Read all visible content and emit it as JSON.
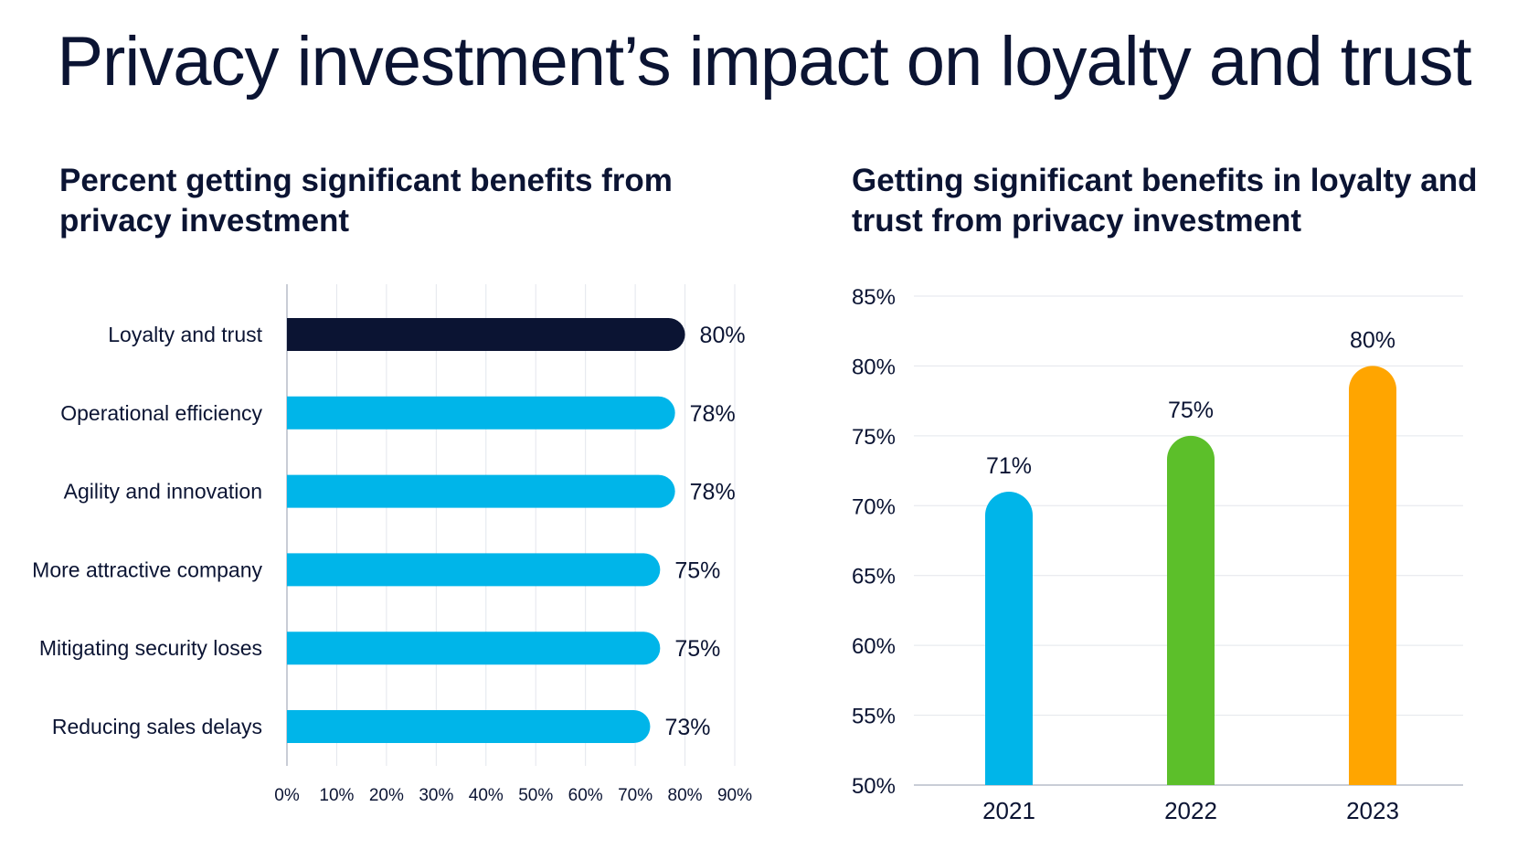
{
  "page": {
    "title": "Privacy investment’s impact on loyalty and trust"
  },
  "colors": {
    "text": "#0b1433",
    "highlight_bar": "#0b1433",
    "bar": "#00b5e9",
    "grid": "#e3e6ec",
    "axis": "#c9cdd6",
    "year_2021": "#00b5e9",
    "year_2022": "#5cbf2a",
    "year_2023": "#ffa500"
  },
  "chart_data": [
    {
      "type": "bar",
      "orientation": "horizontal",
      "title": "Percent getting significant benefits from privacy investment",
      "categories": [
        "Loyalty and trust",
        "Operational efficiency",
        "Agility and innovation",
        "More attractive company",
        "Mitigating security loses",
        "Reducing sales delays"
      ],
      "values": [
        80,
        78,
        78,
        75,
        75,
        73
      ],
      "value_labels": [
        "80%",
        "78%",
        "78%",
        "75%",
        "75%",
        "73%"
      ],
      "highlighted_category": "Loyalty and trust",
      "xlim": [
        0,
        90
      ],
      "xticks": [
        0,
        10,
        20,
        30,
        40,
        50,
        60,
        70,
        80,
        90
      ],
      "xtick_labels": [
        "0%",
        "10%",
        "20%",
        "30%",
        "40%",
        "50%",
        "60%",
        "70%",
        "80%",
        "90%"
      ],
      "grid": true,
      "xlabel": "",
      "ylabel": ""
    },
    {
      "type": "bar",
      "orientation": "vertical",
      "title": "Getting significant benefits in loyalty and trust from privacy investment",
      "categories": [
        "2021",
        "2022",
        "2023"
      ],
      "values": [
        71,
        75,
        80
      ],
      "value_labels": [
        "71%",
        "75%",
        "80%"
      ],
      "ylim": [
        50,
        85
      ],
      "yticks": [
        50,
        55,
        60,
        65,
        70,
        75,
        80,
        85
      ],
      "ytick_labels": [
        "50%",
        "55%",
        "60%",
        "65%",
        "70%",
        "75%",
        "80%",
        "85%"
      ],
      "grid": true,
      "xlabel": "",
      "ylabel": ""
    }
  ]
}
